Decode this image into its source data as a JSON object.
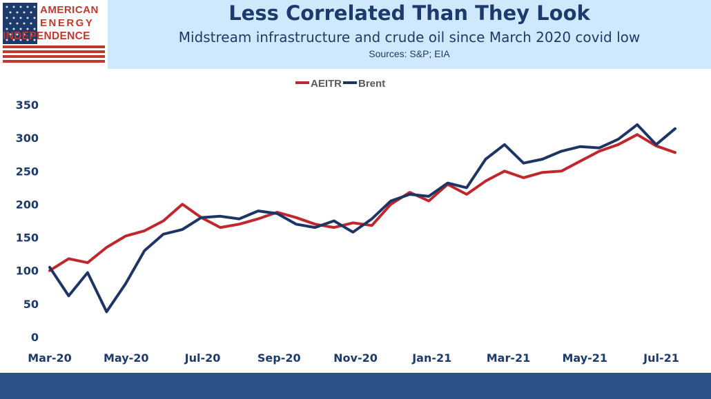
{
  "header": {
    "title": "Less Correlated Than They Look",
    "subtitle": "Midstream infrastructure and crude oil since March 2020 covid low",
    "sources": "Sources: S&P; EIA"
  },
  "logo": {
    "line1": "AMERICAN",
    "line2": "ENERGY",
    "line3": "INDEPENDENCE",
    "colors": {
      "red": "#c0392b",
      "blue": "#1c3a6b"
    }
  },
  "chart_data": {
    "type": "line",
    "title": "",
    "xlabel": "",
    "ylabel": "",
    "ylim": [
      0,
      350
    ],
    "yticks": [
      0,
      50,
      100,
      150,
      200,
      250,
      300,
      350
    ],
    "xticks": [
      "Mar-20",
      "May-20",
      "Jul-20",
      "Sep-20",
      "Nov-20",
      "Jan-21",
      "Mar-21",
      "May-21",
      "Jul-21"
    ],
    "legend": "top-center",
    "grid": false,
    "x": [
      "Mar-20",
      "Apr-20",
      "Apr-20",
      "Apr-20",
      "May-20",
      "May-20",
      "May-20",
      "Jun-20",
      "Jun-20",
      "Jul-20",
      "Jul-20",
      "Aug-20",
      "Aug-20",
      "Sep-20",
      "Sep-20",
      "Oct-20",
      "Oct-20",
      "Nov-20",
      "Nov-20",
      "Dec-20",
      "Dec-20",
      "Jan-21",
      "Jan-21",
      "Feb-21",
      "Feb-21",
      "Mar-21",
      "Mar-21",
      "Apr-21",
      "Apr-21",
      "May-21",
      "May-21",
      "Jun-21",
      "Jun-21",
      "Jul-21"
    ],
    "series": [
      {
        "name": "AEITR",
        "color": "#c0272d",
        "values": [
          100,
          118,
          112,
          135,
          152,
          160,
          175,
          200,
          180,
          165,
          170,
          178,
          188,
          180,
          170,
          165,
          172,
          168,
          200,
          218,
          205,
          230,
          215,
          235,
          250,
          240,
          248,
          250,
          265,
          280,
          290,
          305,
          288,
          278
        ]
      },
      {
        "name": "Brent",
        "color": "#1c3565",
        "values": [
          105,
          62,
          97,
          38,
          80,
          130,
          155,
          162,
          180,
          182,
          178,
          190,
          186,
          170,
          165,
          175,
          158,
          178,
          205,
          215,
          212,
          232,
          225,
          268,
          290,
          262,
          268,
          280,
          287,
          285,
          298,
          320,
          290,
          314
        ]
      }
    ]
  }
}
